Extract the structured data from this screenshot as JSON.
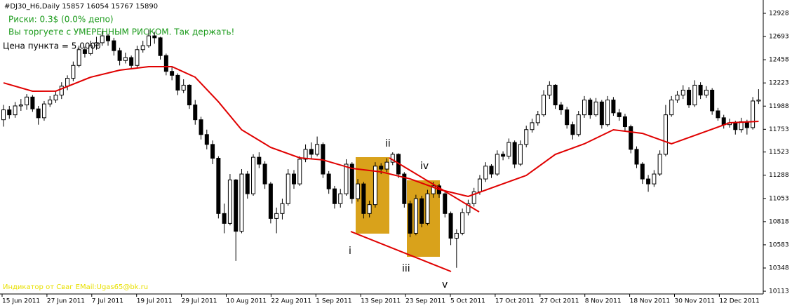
{
  "chart_data": {
    "type": "candlestick",
    "header": "#DJ30_H6,Daily  15857 16054 15767 15890",
    "risk_text": "Риски: 0.3$ (0.0% депо)",
    "risk_message": "Вы торгуете с УМЕРЕННЫМ РИСКОМ. Так держать!",
    "point_price": "Цена пункта = 5.0000",
    "watermark": "Индикатор от Сваг EMail:Ugas65@bk.ru",
    "wave_labels": [
      "i",
      "ii",
      "iii",
      "iv",
      "v"
    ],
    "x_labels": [
      "15 Jun 2011",
      "27 Jun 2011",
      "7 Jul 2011",
      "19 Jul 2011",
      "29 Jul 2011",
      "10 Aug 2011",
      "22 Aug 2011",
      "1 Sep 2011",
      "13 Sep 2011",
      "23 Sep 2011",
      "5 Oct 2011",
      "17 Oct 2011",
      "27 Oct 2011",
      "8 Nov 2011",
      "18 Nov 2011",
      "30 Nov 2011",
      "12 Dec 2011"
    ],
    "ylim": [
      10085,
      13063
    ],
    "yticks": [
      10113,
      10348,
      10583,
      10818,
      11053,
      11288,
      11523,
      11753,
      11988,
      12223,
      12458,
      12693,
      12928
    ],
    "ma_color": "#e00000",
    "ma": {
      "x": [
        0,
        5,
        9,
        15,
        20,
        25,
        29,
        33,
        37,
        41,
        46,
        51,
        55,
        60,
        65,
        70,
        75,
        80,
        85,
        90,
        95,
        100,
        105,
        110,
        115,
        120,
        125,
        130
      ],
      "values": [
        12224,
        12139,
        12140,
        12281,
        12352,
        12388,
        12388,
        12281,
        12032,
        11748,
        11570,
        11464,
        11443,
        11357,
        11322,
        11251,
        11144,
        11073,
        11180,
        11286,
        11499,
        11606,
        11748,
        11712,
        11606,
        11712,
        11819,
        11833
      ]
    },
    "ohlc": [
      [
        11850,
        12000,
        11780,
        11950
      ],
      [
        11950,
        11990,
        11860,
        11900
      ],
      [
        11900,
        12030,
        11870,
        11990
      ],
      [
        11990,
        12060,
        11940,
        12000
      ],
      [
        12000,
        12110,
        11950,
        12080
      ],
      [
        12080,
        12100,
        11930,
        11960
      ],
      [
        11960,
        11990,
        11800,
        11870
      ],
      [
        11870,
        12040,
        11840,
        12010
      ],
      [
        12010,
        12090,
        11980,
        12050
      ],
      [
        12050,
        12140,
        12020,
        12100
      ],
      [
        12100,
        12230,
        12060,
        12190
      ],
      [
        12190,
        12300,
        12150,
        12270
      ],
      [
        12270,
        12440,
        12240,
        12400
      ],
      [
        12400,
        12600,
        12380,
        12560
      ],
      [
        12560,
        12590,
        12480,
        12520
      ],
      [
        12520,
        12650,
        12500,
        12600
      ],
      [
        12600,
        12690,
        12560,
        12630
      ],
      [
        12630,
        12750,
        12600,
        12700
      ],
      [
        12700,
        12720,
        12600,
        12650
      ],
      [
        12650,
        12680,
        12500,
        12550
      ],
      [
        12550,
        12580,
        12400,
        12450
      ],
      [
        12450,
        12530,
        12420,
        12480
      ],
      [
        12480,
        12500,
        12360,
        12400
      ],
      [
        12400,
        12600,
        12380,
        12560
      ],
      [
        12560,
        12650,
        12530,
        12600
      ],
      [
        12600,
        12760,
        12580,
        12700
      ],
      [
        12700,
        12740,
        12620,
        12680
      ],
      [
        12680,
        12690,
        12460,
        12500
      ],
      [
        12500,
        12520,
        12300,
        12340
      ],
      [
        12340,
        12380,
        12250,
        12300
      ],
      [
        12300,
        12320,
        12100,
        12150
      ],
      [
        12150,
        12260,
        12120,
        12200
      ],
      [
        12200,
        12210,
        11960,
        12000
      ],
      [
        12000,
        12050,
        11800,
        11850
      ],
      [
        11850,
        11880,
        11650,
        11700
      ],
      [
        11700,
        11750,
        11550,
        11600
      ],
      [
        11600,
        11640,
        11400,
        11460
      ],
      [
        11460,
        11480,
        10850,
        10900
      ],
      [
        10900,
        11000,
        10700,
        10800
      ],
      [
        10800,
        11300,
        10780,
        11240
      ],
      [
        11240,
        11250,
        10420,
        10720
      ],
      [
        10720,
        11350,
        10700,
        11300
      ],
      [
        11300,
        11330,
        11050,
        11100
      ],
      [
        11100,
        11500,
        11080,
        11470
      ],
      [
        11470,
        11520,
        11360,
        11400
      ],
      [
        11400,
        11430,
        11150,
        11200
      ],
      [
        11200,
        11220,
        10800,
        10850
      ],
      [
        10850,
        10960,
        10700,
        10900
      ],
      [
        10900,
        11050,
        10840,
        11000
      ],
      [
        11000,
        11350,
        10980,
        11300
      ],
      [
        11300,
        11340,
        11150,
        11200
      ],
      [
        11200,
        11480,
        11180,
        11450
      ],
      [
        11450,
        11600,
        11420,
        11550
      ],
      [
        11550,
        11620,
        11460,
        11500
      ],
      [
        11500,
        11680,
        11480,
        11600
      ],
      [
        11600,
        11620,
        11260,
        11300
      ],
      [
        11300,
        11330,
        11100,
        11150
      ],
      [
        11150,
        11180,
        10950,
        11000
      ],
      [
        11000,
        11150,
        10960,
        11100
      ],
      [
        11100,
        11450,
        11080,
        11400
      ],
      [
        11400,
        11420,
        11000,
        11050
      ],
      [
        11050,
        11250,
        11020,
        11200
      ],
      [
        11200,
        11220,
        10850,
        10900
      ],
      [
        10900,
        11030,
        10860,
        10990
      ],
      [
        10990,
        11420,
        10960,
        11380
      ],
      [
        11380,
        11410,
        11300,
        11350
      ],
      [
        11350,
        11460,
        11320,
        11420
      ],
      [
        11420,
        11520,
        11390,
        11500
      ],
      [
        11500,
        11510,
        11260,
        11300
      ],
      [
        11300,
        11320,
        10960,
        11000
      ],
      [
        11000,
        11030,
        10660,
        10700
      ],
      [
        10700,
        11090,
        10680,
        11050
      ],
      [
        11050,
        11080,
        10760,
        10800
      ],
      [
        10800,
        11140,
        10780,
        11100
      ],
      [
        11100,
        11220,
        11060,
        11180
      ],
      [
        11180,
        11200,
        11060,
        11100
      ],
      [
        11100,
        11130,
        10860,
        10900
      ],
      [
        10900,
        10920,
        10580,
        10650
      ],
      [
        10650,
        10740,
        10350,
        10700
      ],
      [
        10700,
        10950,
        10680,
        10910
      ],
      [
        10910,
        11040,
        10880,
        11000
      ],
      [
        11000,
        11160,
        10970,
        11120
      ],
      [
        11120,
        11290,
        11090,
        11250
      ],
      [
        11250,
        11420,
        11220,
        11380
      ],
      [
        11380,
        11400,
        11260,
        11300
      ],
      [
        11300,
        11540,
        11280,
        11500
      ],
      [
        11500,
        11530,
        11440,
        11480
      ],
      [
        11480,
        11660,
        11450,
        11620
      ],
      [
        11620,
        11640,
        11360,
        11400
      ],
      [
        11400,
        11640,
        11380,
        11600
      ],
      [
        11600,
        11790,
        11570,
        11750
      ],
      [
        11750,
        11860,
        11720,
        11820
      ],
      [
        11820,
        11940,
        11790,
        11900
      ],
      [
        11900,
        12150,
        11880,
        12100
      ],
      [
        12100,
        12240,
        12060,
        12200
      ],
      [
        12200,
        12210,
        11960,
        12000
      ],
      [
        12000,
        12030,
        11900,
        11950
      ],
      [
        11950,
        11980,
        11760,
        11800
      ],
      [
        11800,
        11830,
        11650,
        11700
      ],
      [
        11700,
        11940,
        11680,
        11900
      ],
      [
        11900,
        12090,
        11870,
        12050
      ],
      [
        12050,
        12070,
        11860,
        11900
      ],
      [
        11900,
        12070,
        11880,
        12030
      ],
      [
        12030,
        12050,
        11760,
        11800
      ],
      [
        11800,
        12090,
        11780,
        12050
      ],
      [
        12050,
        12080,
        11890,
        11920
      ],
      [
        11920,
        11960,
        11840,
        11880
      ],
      [
        11880,
        11910,
        11740,
        11780
      ],
      [
        11780,
        11800,
        11510,
        11550
      ],
      [
        11550,
        11580,
        11360,
        11400
      ],
      [
        11400,
        11420,
        11200,
        11250
      ],
      [
        11250,
        11290,
        11120,
        11200
      ],
      [
        11200,
        11340,
        11170,
        11300
      ],
      [
        11300,
        11540,
        11280,
        11500
      ],
      [
        11500,
        12000,
        11480,
        11900
      ],
      [
        11900,
        12090,
        11880,
        12050
      ],
      [
        12050,
        12140,
        12020,
        12100
      ],
      [
        12100,
        12200,
        12060,
        12150
      ],
      [
        12150,
        12180,
        11970,
        12000
      ],
      [
        12000,
        12250,
        11980,
        12200
      ],
      [
        12200,
        12230,
        12060,
        12100
      ],
      [
        12100,
        12190,
        12070,
        12150
      ],
      [
        12150,
        12170,
        11900,
        11940
      ],
      [
        11940,
        11970,
        11840,
        11870
      ],
      [
        11870,
        11900,
        11760,
        11800
      ],
      [
        11800,
        11860,
        11770,
        11820
      ],
      [
        11820,
        11840,
        11700,
        11750
      ],
      [
        11750,
        11870,
        11720,
        11830
      ],
      [
        11830,
        11850,
        11700,
        11770
      ],
      [
        11770,
        12080,
        11750,
        12040
      ],
      [
        12040,
        12160,
        12010,
        12050
      ]
    ]
  }
}
